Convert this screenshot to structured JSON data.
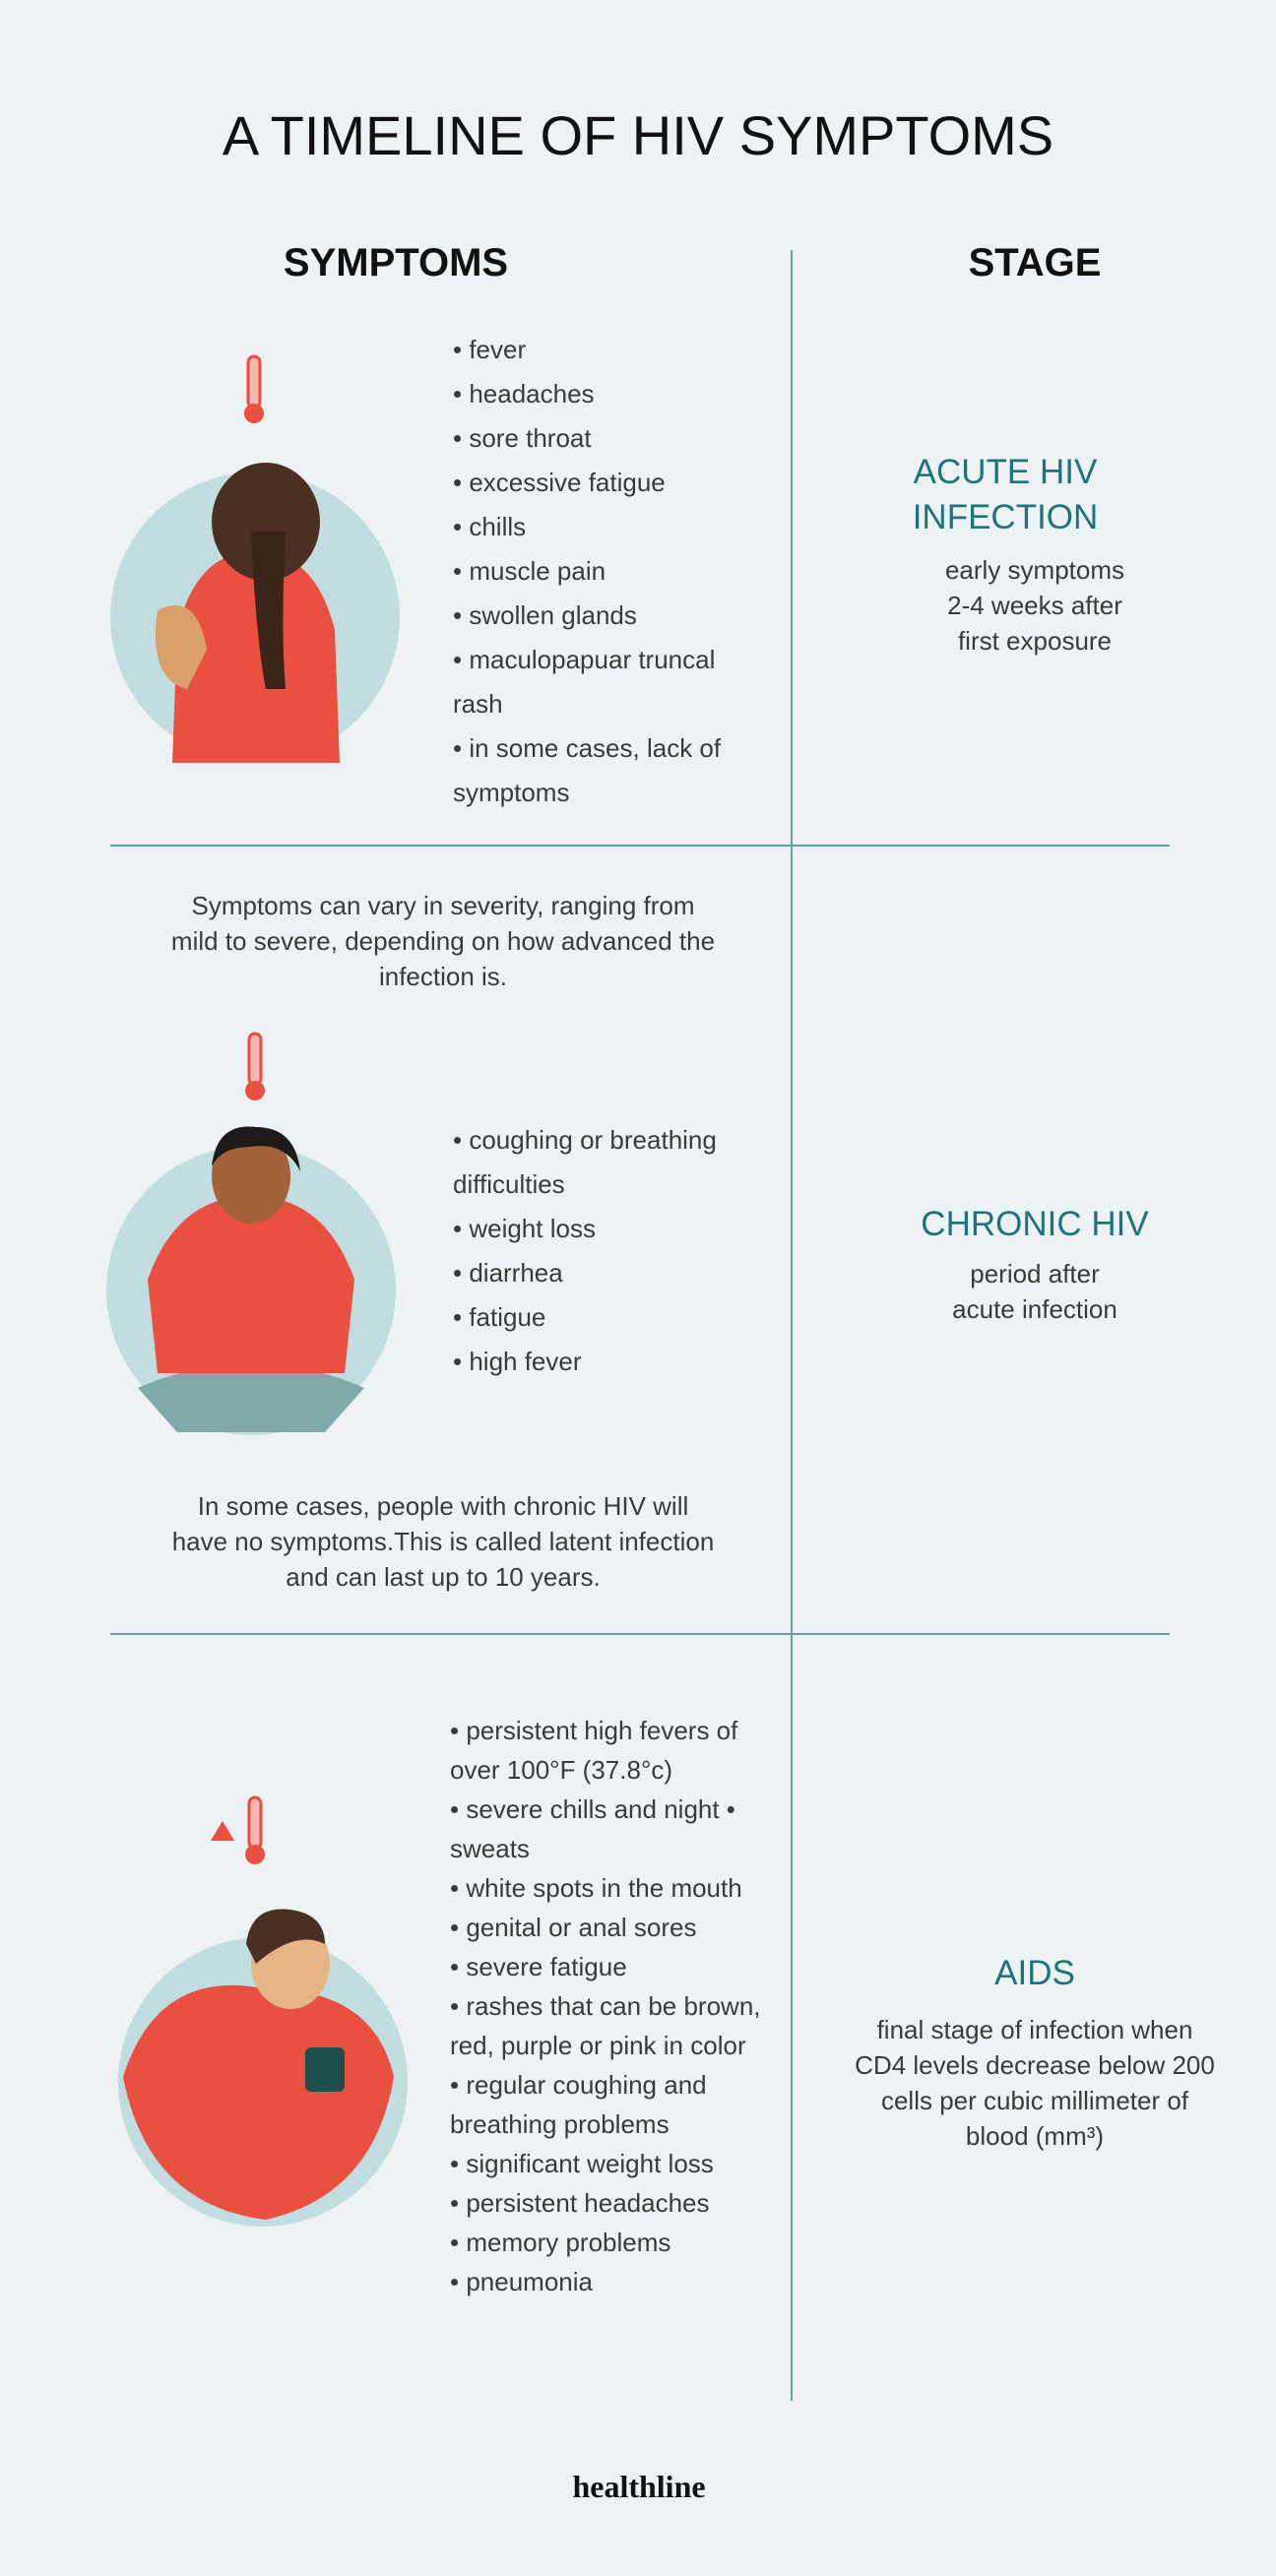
{
  "header": {
    "title": "A TIMELINE OF HIV SYMPTOMS",
    "symptoms_heading": "SYMPTOMS",
    "stage_heading": "STAGE"
  },
  "sections": [
    {
      "intro": null,
      "symptoms": [
        "• fever",
        "• headaches",
        "• sore throat",
        "• excessive fatigue",
        "• chills",
        "• muscle pain",
        "• swollen glands",
        "• maculopapuar truncal rash",
        "• in some cases, lack of symptoms"
      ],
      "note": null,
      "stage": {
        "name": "ACUTE HIV INFECTION",
        "description": [
          "early symptoms",
          "2-4 weeks after",
          "first exposure"
        ]
      }
    },
    {
      "intro": "Symptoms can vary in severity, ranging from mild to severe, depending on how advanced the infection is.",
      "symptoms": [
        "• coughing or breathing difficulties",
        "• weight loss",
        "• diarrhea",
        "• fatigue",
        "• high fever"
      ],
      "note": "In some cases, people with chronic HIV will have no symptoms.This is called latent infection and can last up to 10 years.",
      "stage": {
        "name": "CHRONIC HIV",
        "description": [
          "period after",
          "acute infection"
        ]
      }
    },
    {
      "intro": null,
      "symptoms": [
        "• persistent high fevers of over 100°F (37.8°c)",
        "• severe chills and night • sweats",
        "• white spots in the mouth",
        "• genital or anal sores",
        "• severe fatigue",
        "• rashes that can be brown, red, purple or pink in color",
        "• regular coughing and breathing problems",
        "• significant weight loss",
        "• persistent headaches",
        "• memory problems",
        "• pneumonia"
      ],
      "note": null,
      "stage": {
        "name": "AIDS",
        "description": [
          "final stage of infection when",
          "CD4 levels decrease below 200",
          "cells per cubic millimeter of",
          "blood (mm³)"
        ]
      }
    }
  ],
  "footer": {
    "brand": "healthline"
  }
}
